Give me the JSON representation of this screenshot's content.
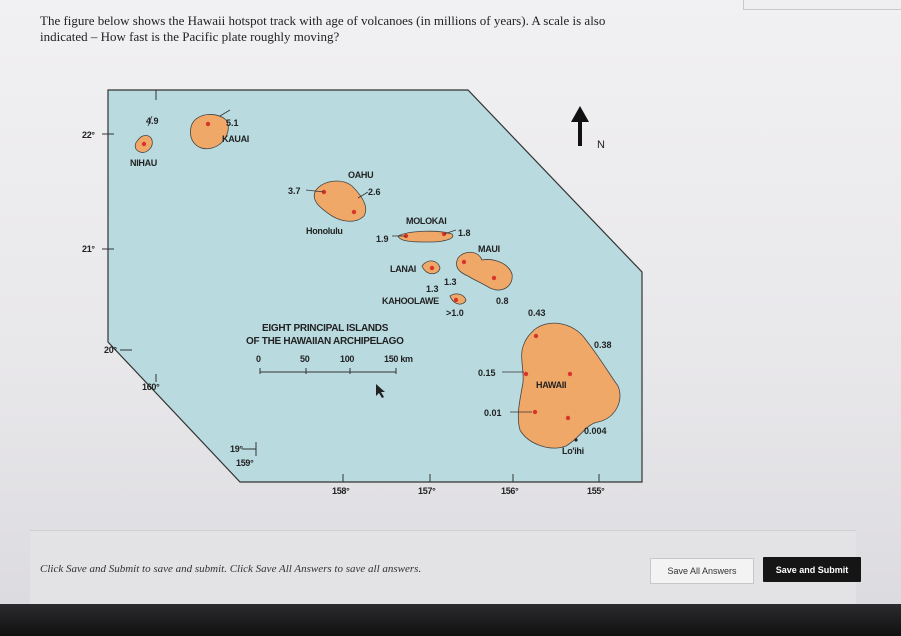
{
  "question": {
    "line1": "The figure below shows the Hawaii hotspot track with age of volcanoes (in millions of years). A scale is also",
    "line2": "indicated – How fast is the Pacific plate roughly moving?"
  },
  "map": {
    "lat_labels": [
      "22°",
      "21°",
      "20°",
      "19°"
    ],
    "lon_labels": [
      "160°",
      "159°",
      "158°",
      "157°",
      "156°",
      "155°"
    ],
    "north_label": "N",
    "islands": {
      "niihau": "NIHAU",
      "kauai": "KAUAI",
      "oahu": "OAHU",
      "honolulu": "Honolulu",
      "molokai": "MOLOKAI",
      "lanai": "LANAI",
      "maui": "MAUI",
      "kahoolawe": "KAHOOLAWE",
      "hawaii": "HAWAII",
      "loihi": "Lo'ihi"
    },
    "ages": {
      "niihau": "4.9",
      "kauai": "5.1",
      "oahu_w": "3.7",
      "oahu_e": "2.6",
      "molokai_w": "1.9",
      "molokai_e": "1.8",
      "lanai": "1.3",
      "maui_w": "1.3",
      "kahoolawe": ">1.0",
      "maui_e": "0.8",
      "hawaii_n": "0.43",
      "hawaii_w": "0.15",
      "hawaii_sw": "0.01",
      "hawaii_ne": "0.38",
      "hawaii_se": "0.004"
    },
    "caption_line1": "EIGHT PRINCIPAL ISLANDS",
    "caption_line2": "OF THE HAWAIIAN ARCHIPELAGO",
    "scale_labels": [
      "0",
      "50",
      "100",
      "150 km"
    ]
  },
  "footer": {
    "instruction": "Click Save and Submit to save and submit. Click Save All Answers to save all answers.",
    "save_all_label": "Save All Answers",
    "submit_label": "Save and Submit"
  },
  "colors": {
    "ocean": "#b9dbe0",
    "island": "#f0a868",
    "dot": "#d9342b"
  }
}
